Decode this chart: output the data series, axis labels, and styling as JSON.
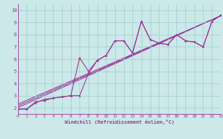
{
  "xlabel": "Windchill (Refroidissement éolien,°C)",
  "xlim": [
    0,
    23
  ],
  "ylim": [
    1.5,
    10.5
  ],
  "xticks": [
    0,
    1,
    2,
    3,
    4,
    5,
    6,
    7,
    8,
    9,
    10,
    11,
    12,
    13,
    14,
    15,
    16,
    17,
    18,
    19,
    20,
    21,
    22,
    23
  ],
  "yticks": [
    2,
    3,
    4,
    5,
    6,
    7,
    8,
    9,
    10
  ],
  "bg_color": "#cce8e8",
  "line_color": "#993399",
  "grid_color": "#99cccc",
  "series1_x": [
    0,
    1,
    2,
    3,
    4,
    5,
    6,
    7,
    8,
    9,
    10,
    11,
    12,
    13,
    14,
    15,
    16,
    17,
    18,
    19,
    20,
    21,
    22,
    23
  ],
  "series1_y": [
    1.9,
    1.9,
    2.5,
    2.6,
    2.8,
    2.9,
    3.0,
    6.1,
    5.0,
    5.9,
    6.3,
    7.5,
    7.5,
    6.5,
    9.1,
    7.6,
    7.3,
    7.2,
    8.0,
    7.5,
    7.4,
    7.0,
    9.1,
    9.6
  ],
  "series2_x": [
    0,
    1,
    2,
    3,
    4,
    5,
    6,
    7,
    8,
    9,
    10,
    11,
    12,
    13,
    14,
    15,
    16,
    17,
    18,
    19,
    20,
    21,
    22,
    23
  ],
  "series2_y": [
    1.9,
    1.9,
    2.4,
    2.7,
    2.8,
    2.9,
    3.0,
    3.0,
    4.8,
    5.9,
    6.3,
    7.5,
    7.5,
    6.5,
    9.1,
    7.6,
    7.3,
    7.2,
    8.0,
    7.5,
    7.4,
    7.0,
    9.1,
    9.6
  ]
}
